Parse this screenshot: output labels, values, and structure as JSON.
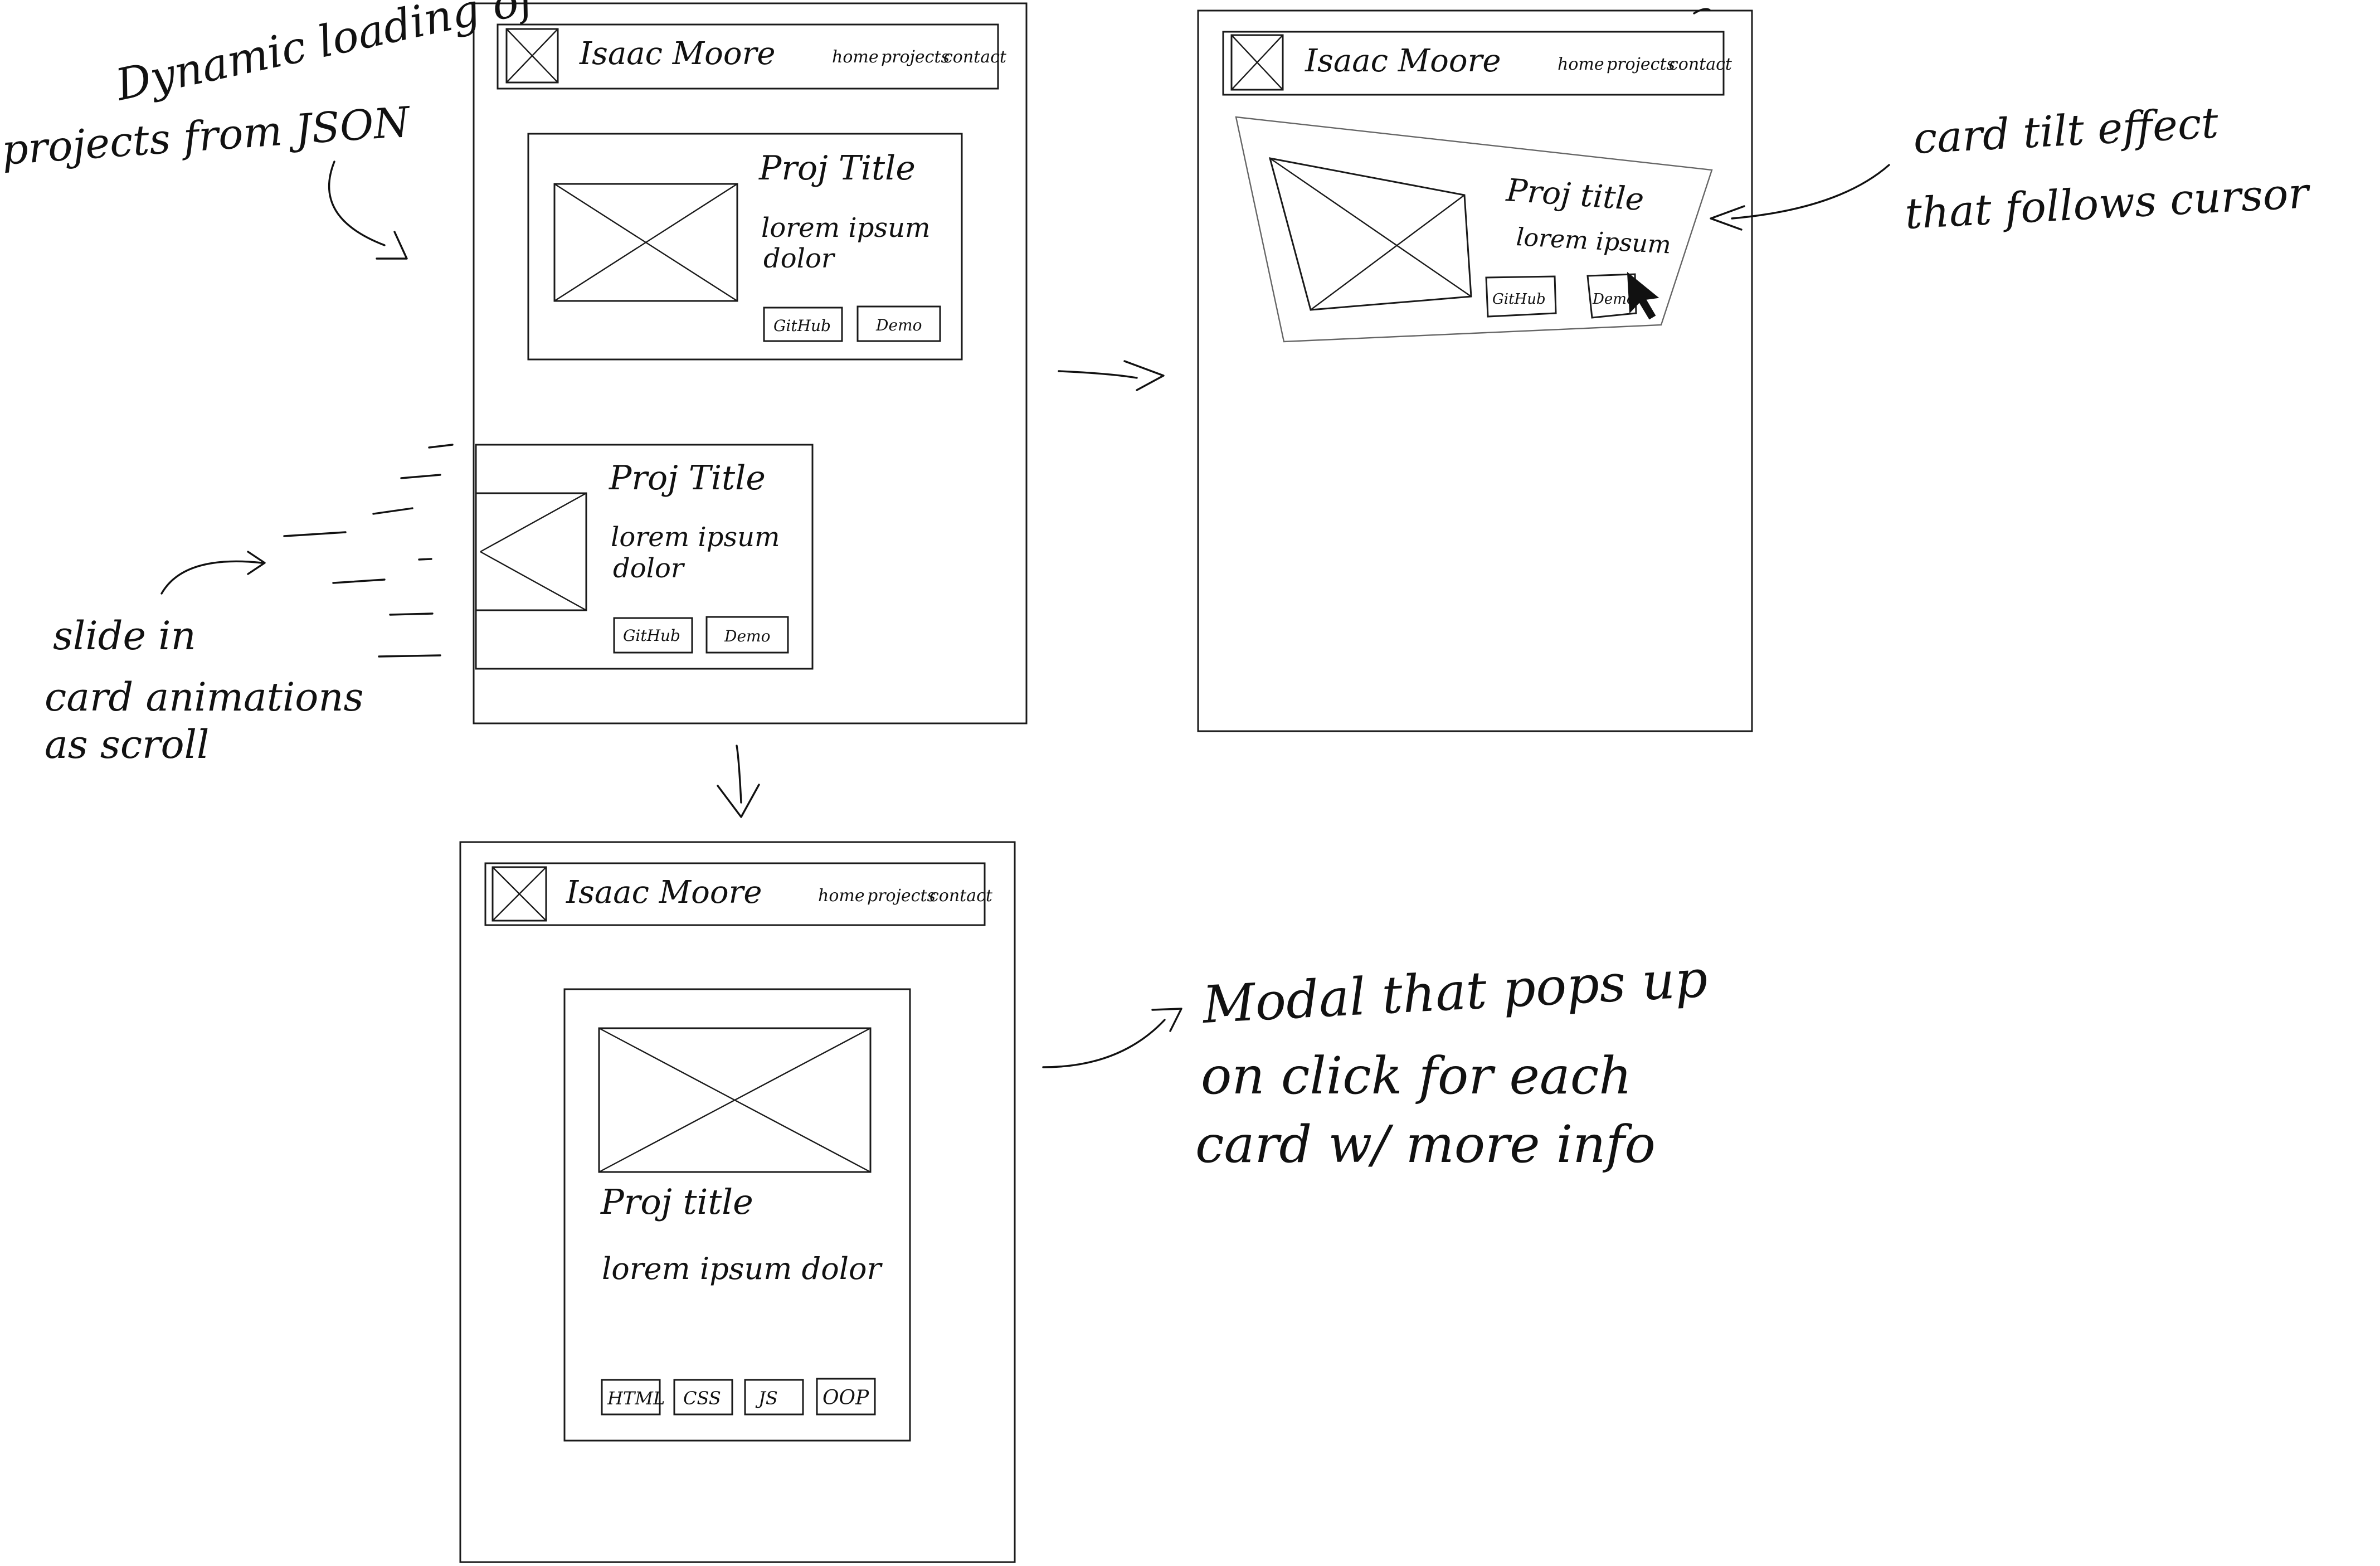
{
  "site": {
    "name": "Isaac Moore",
    "nav": [
      "home",
      "projects",
      "contact"
    ]
  },
  "frame_list": {
    "card_top": {
      "title": "Proj Title",
      "desc_line1": "lorem ipsum",
      "desc_line2": "dolor",
      "btn_github": "GitHub",
      "btn_demo": "Demo"
    },
    "card_slide": {
      "title": "Proj Title",
      "desc_line1": "lorem ipsum",
      "desc_line2": "dolor",
      "btn_github": "GitHub",
      "btn_demo": "Demo"
    }
  },
  "frame_tilt": {
    "card": {
      "title": "Proj title",
      "desc": "lorem ipsum",
      "btn_github": "GitHub",
      "btn_demo": "Demo"
    }
  },
  "frame_modal": {
    "title": "Proj title",
    "desc": "lorem ipsum dolor",
    "tags": [
      "HTML",
      "CSS",
      "JS",
      "OOP"
    ]
  },
  "annotations": {
    "dynamic_loading": [
      "Dynamic loading of",
      "projects from JSON"
    ],
    "slide_in": [
      "slide in",
      "card animations",
      "as scroll"
    ],
    "tilt": [
      "card tilt effect",
      "that follows cursor"
    ],
    "modal": [
      "Modal that pops up",
      "on click for each",
      "card w/ more info"
    ]
  }
}
